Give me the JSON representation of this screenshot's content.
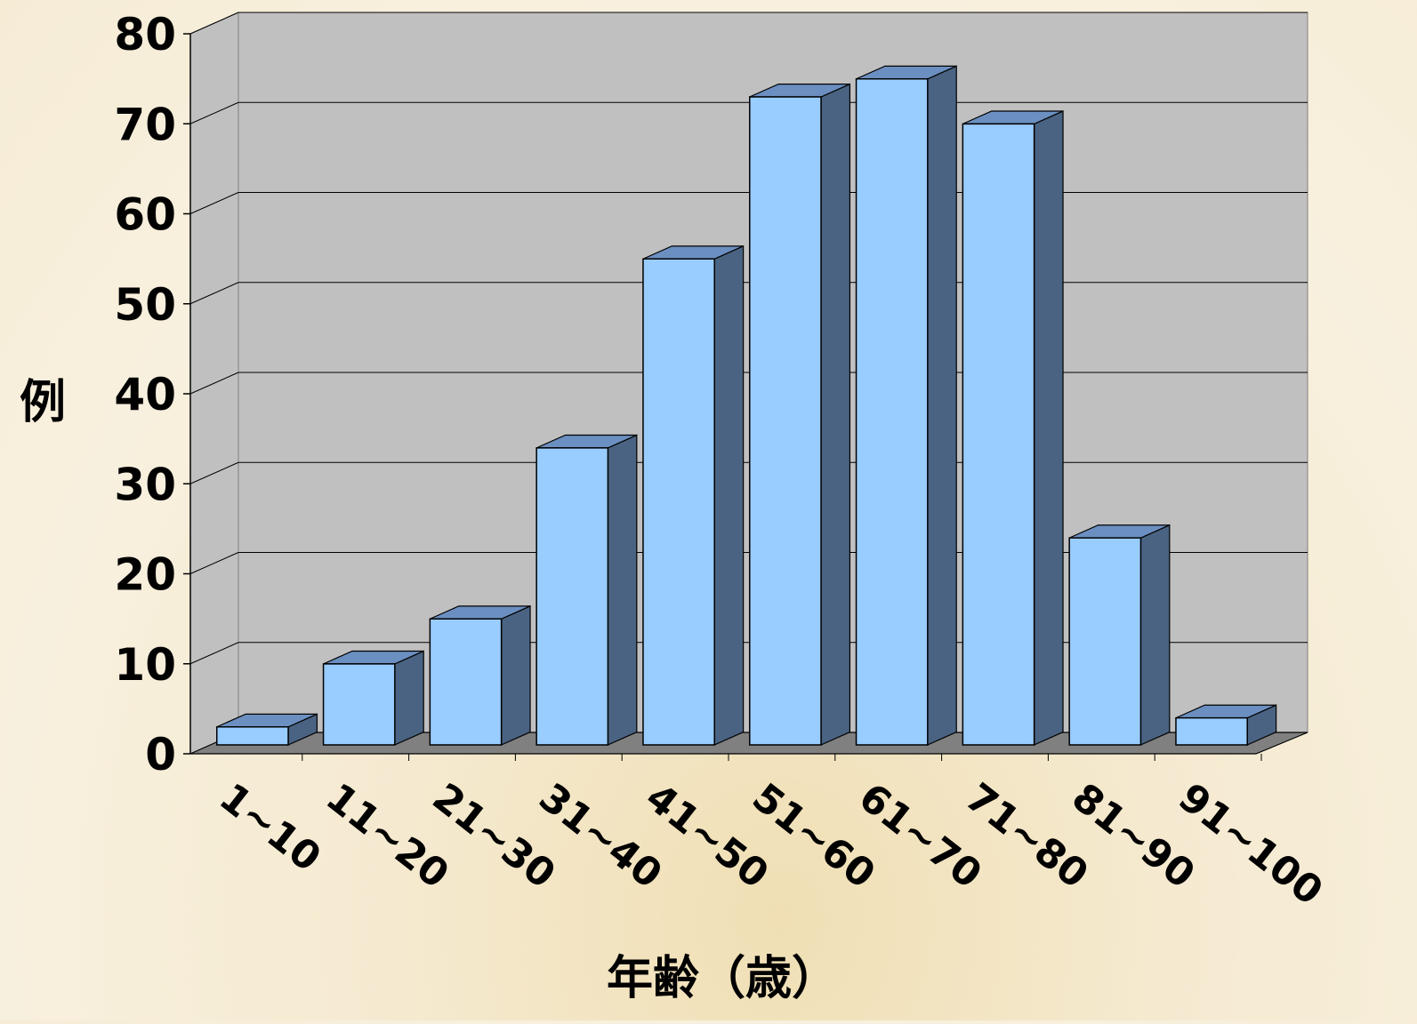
{
  "chart_data": {
    "type": "bar",
    "categories": [
      "1~10",
      "11~20",
      "21~30",
      "31~40",
      "41~50",
      "51~60",
      "61~70",
      "71~80",
      "81~90",
      "91~100"
    ],
    "values": [
      2,
      9,
      14,
      33,
      54,
      72,
      74,
      69,
      23,
      3
    ],
    "yticks": [
      "0",
      "10",
      "20",
      "30",
      "40",
      "50",
      "60",
      "70",
      "80"
    ],
    "ylim": [
      0,
      80
    ],
    "xlabel": "年齢（歳）",
    "ylabel": "例",
    "grid": true,
    "colors": {
      "bar_front": "#99ccff",
      "bar_side": "#4a6382",
      "bar_top": "#6b8fc0",
      "wall": "#c0c0c0",
      "floor": "#808080"
    }
  }
}
